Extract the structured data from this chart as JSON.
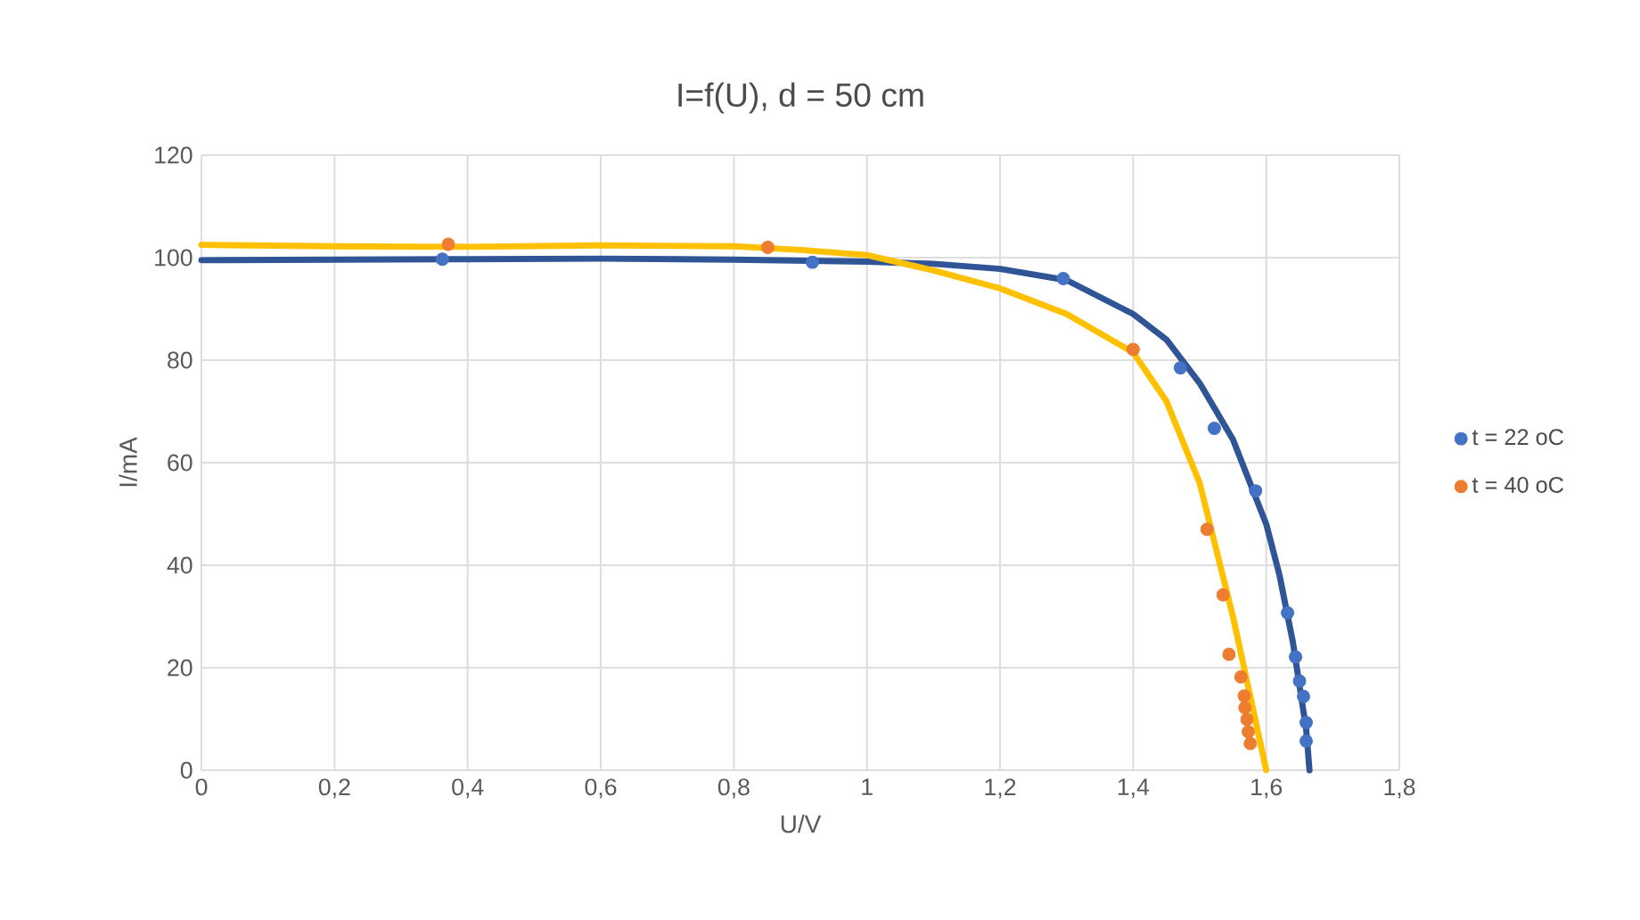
{
  "chart_data": {
    "type": "scatter",
    "title": "I=f(U), d = 50 cm",
    "xlabel": "U/V",
    "ylabel": "I/mA",
    "xlim": [
      0,
      1.8
    ],
    "ylim": [
      0,
      120
    ],
    "xticks": [
      0,
      {
        "value": 0.2,
        "label": "0,2"
      },
      {
        "value": 0.4,
        "label": "0,4"
      },
      {
        "value": 0.6,
        "label": "0,6"
      },
      {
        "value": 0.8,
        "label": "0,8"
      },
      1,
      {
        "value": 1.2,
        "label": "1,2"
      },
      {
        "value": 1.4,
        "label": "1,4"
      },
      {
        "value": 1.6,
        "label": "1,6"
      },
      {
        "value": 1.8,
        "label": "1,8"
      }
    ],
    "yticks": [
      0,
      20,
      40,
      60,
      80,
      100,
      120
    ],
    "grid": true,
    "legend": "right",
    "series": [
      {
        "name": "t = 22 oC",
        "type": "scatter",
        "marker": "circle",
        "color": "#4472c4",
        "x": [
          0.362,
          0.918,
          1.295,
          1.471,
          1.522,
          1.584,
          1.632,
          1.644,
          1.65,
          1.656,
          1.66,
          1.66
        ],
        "values": [
          99.7,
          99.1,
          95.9,
          78.5,
          66.7,
          54.5,
          30.7,
          22.1,
          17.4,
          14.4,
          9.3,
          5.7
        ]
      },
      {
        "name": "t = 40 oC",
        "type": "scatter",
        "marker": "circle",
        "color": "#ed7d31",
        "x": [
          0.371,
          0.851,
          1.4,
          1.511,
          1.535,
          1.544,
          1.562,
          1.567,
          1.568,
          1.571,
          1.573,
          1.576
        ],
        "values": [
          102.6,
          102,
          82.1,
          47,
          34.2,
          22.6,
          18.2,
          14.5,
          12.2,
          9.9,
          7.5,
          5.2
        ]
      },
      {
        "type": "line",
        "marker": "none",
        "color": "#2f5597",
        "x": [
          0,
          0.2,
          0.4,
          0.6,
          0.8,
          1.0,
          1.1,
          1.2,
          1.3,
          1.4,
          1.45,
          1.5,
          1.55,
          1.6,
          1.62,
          1.64,
          1.66,
          1.665
        ],
        "values": [
          99.5,
          99.6,
          99.7,
          99.8,
          99.6,
          99.2,
          98.8,
          97.8,
          95.6,
          89,
          84,
          75.5,
          64.5,
          48,
          38,
          25,
          8,
          0
        ]
      },
      {
        "type": "line",
        "marker": "none",
        "color": "#ffc000",
        "x": [
          0,
          0.2,
          0.4,
          0.6,
          0.8,
          0.9,
          1.0,
          1.1,
          1.2,
          1.3,
          1.4,
          1.45,
          1.5,
          1.55,
          1.58,
          1.6
        ],
        "values": [
          102.5,
          102.2,
          102.1,
          102.4,
          102.2,
          101.5,
          100.5,
          97.5,
          94,
          89,
          81.5,
          72,
          56,
          30,
          12,
          0
        ]
      }
    ]
  }
}
